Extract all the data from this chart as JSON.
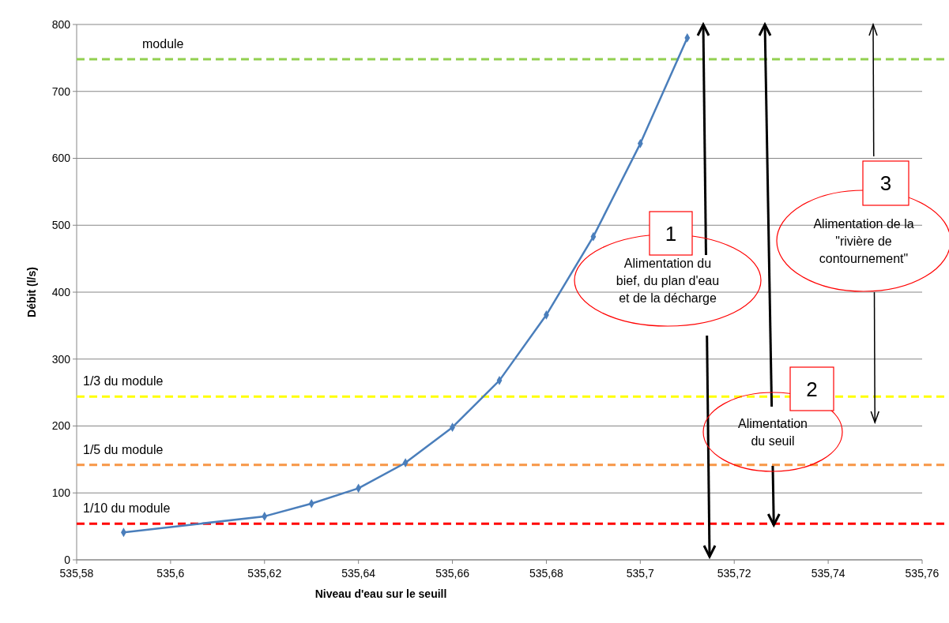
{
  "chart_data": {
    "type": "line",
    "xlabel": "Niveau d'eau sur le seuill",
    "ylabel": "Débit (l/s)",
    "x": [
      535.59,
      535.62,
      535.63,
      535.64,
      535.65,
      535.66,
      535.67,
      535.68,
      535.69,
      535.7,
      535.71
    ],
    "series": [
      {
        "color": "#4a7ebb",
        "values": [
          41,
          65,
          84,
          107,
          145,
          198,
          268,
          366,
          483,
          622,
          780
        ]
      }
    ],
    "xlim": [
      535.58,
      535.76
    ],
    "xticks": [
      {
        "value": 535.58,
        "label": "535,58"
      },
      {
        "value": 535.6,
        "label": "535,6"
      },
      {
        "value": 535.62,
        "label": "535,62"
      },
      {
        "value": 535.64,
        "label": "535,64"
      },
      {
        "value": 535.66,
        "label": "535,66"
      },
      {
        "value": 535.68,
        "label": "535,68"
      },
      {
        "value": 535.7,
        "label": "535,7"
      },
      {
        "value": 535.72,
        "label": "535,72"
      },
      {
        "value": 535.74,
        "label": "535,74"
      },
      {
        "value": 535.76,
        "label": "535,76"
      }
    ],
    "ylim": [
      0,
      800
    ],
    "yticks": [
      0,
      100,
      200,
      300,
      400,
      500,
      600,
      700,
      800
    ],
    "grid": "y",
    "marker": "diamond",
    "line_style": "solid",
    "ref_lines": [
      {
        "axis": "y",
        "value": 748,
        "label": "module",
        "color": "#92d050",
        "line_style": "dashed"
      },
      {
        "axis": "y",
        "value": 244,
        "label": "1/3 du module",
        "color": "#ffff00",
        "line_style": "dashed"
      },
      {
        "axis": "y",
        "value": 142,
        "label": "1/5 du module",
        "color": "#f79646",
        "line_style": "dashed"
      },
      {
        "axis": "y",
        "value": 54,
        "label": "1/10 du module",
        "color": "#ff0000",
        "line_style": "dashed"
      }
    ],
    "annotations": [
      "1",
      "Alimentation du bief, du plan d'eau et de la décharge",
      "2",
      "Alimentation du seuil",
      "3",
      "Alimentation de la \"rivière de contournement\""
    ]
  }
}
